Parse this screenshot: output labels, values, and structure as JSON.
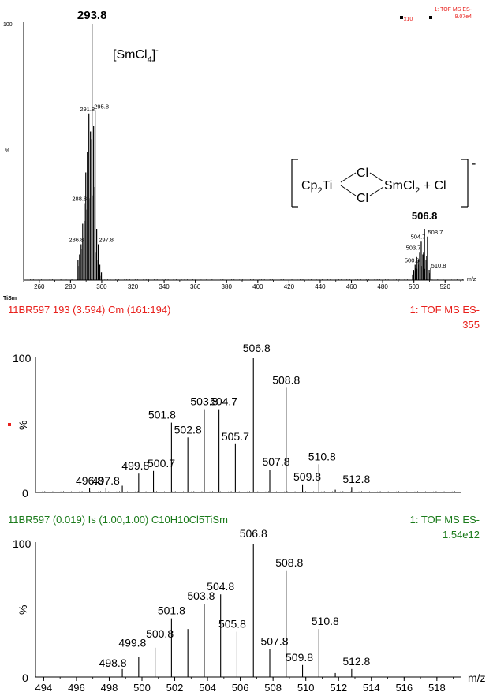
{
  "sample_label": "TiSm",
  "chart_data": [
    {
      "type": "bar",
      "ylabel": "%",
      "xlabel": "m/z",
      "top_left_tag": "100",
      "header_right": "1: TOF MS ES-",
      "header_right2": "9.07e4",
      "header_marker": "x10",
      "xlim": [
        250,
        532
      ],
      "ylim": [
        0,
        100
      ],
      "xticks": [
        "260",
        "280",
        "300",
        "320",
        "340",
        "360",
        "380",
        "400",
        "420",
        "440",
        "460",
        "480",
        "500",
        "520"
      ],
      "annotations": [
        "[SmCl",
        "4",
        "]",
        "-",
        "Cp",
        "2",
        "Ti",
        "Cl",
        "Cl",
        "SmCl",
        "2",
        " + Cl",
        "-"
      ],
      "peaks": [
        {
          "x": 284.8,
          "y": 8
        },
        {
          "x": 285.8,
          "y": 10
        },
        {
          "x": 286.8,
          "y": 14
        },
        {
          "x": 287.8,
          "y": 22
        },
        {
          "x": 288.8,
          "y": 30
        },
        {
          "x": 289.8,
          "y": 42
        },
        {
          "x": 290.8,
          "y": 50
        },
        {
          "x": 291.8,
          "y": 65
        },
        {
          "x": 292.8,
          "y": 58
        },
        {
          "x": 293.8,
          "y": 100
        },
        {
          "x": 294.8,
          "y": 60
        },
        {
          "x": 295.8,
          "y": 66
        },
        {
          "x": 296.8,
          "y": 20
        },
        {
          "x": 297.8,
          "y": 14
        },
        {
          "x": 298.8,
          "y": 6
        },
        {
          "x": 299.8,
          "y": 3
        },
        {
          "x": 499.8,
          "y": 4
        },
        {
          "x": 500.8,
          "y": 6
        },
        {
          "x": 501.8,
          "y": 9
        },
        {
          "x": 502.8,
          "y": 8
        },
        {
          "x": 503.7,
          "y": 11
        },
        {
          "x": 504.7,
          "y": 15
        },
        {
          "x": 505.7,
          "y": 10
        },
        {
          "x": 506.8,
          "y": 20
        },
        {
          "x": 507.8,
          "y": 8
        },
        {
          "x": 508.7,
          "y": 17
        },
        {
          "x": 509.8,
          "y": 4
        },
        {
          "x": 510.8,
          "y": 5
        }
      ],
      "peak_labels": [
        {
          "x": 293.8,
          "y": 100,
          "text": "293.8"
        },
        {
          "x": 291.8,
          "y": 65,
          "text": "291.8"
        },
        {
          "x": 295.8,
          "y": 66,
          "text": "295.8"
        },
        {
          "x": 288.8,
          "y": 30,
          "text": "288.8"
        },
        {
          "x": 286.8,
          "y": 14,
          "text": "286.8"
        },
        {
          "x": 297.8,
          "y": 14,
          "text": "297.8"
        },
        {
          "x": 506.8,
          "y": 20,
          "text": "506.8"
        },
        {
          "x": 504.7,
          "y": 15,
          "text": "504.7"
        },
        {
          "x": 508.7,
          "y": 17,
          "text": "508.7"
        },
        {
          "x": 503.7,
          "y": 11,
          "text": "503.7"
        },
        {
          "x": 500.8,
          "y": 6,
          "text": "500.8"
        },
        {
          "x": 510.8,
          "y": 5,
          "text": "510.8"
        }
      ]
    },
    {
      "type": "bar",
      "title": "11BR597 193 (3.594) Cm (161:194)",
      "header_right": "1: TOF MS ES-",
      "header_right2": "355",
      "ylabel": "%",
      "xlim": [
        493.5,
        519.5
      ],
      "ylim": [
        0,
        100
      ],
      "yticks": [
        "100",
        "0"
      ],
      "peaks": [
        {
          "x": 496.8,
          "y": 3
        },
        {
          "x": 497.8,
          "y": 3
        },
        {
          "x": 498.8,
          "y": 5
        },
        {
          "x": 499.8,
          "y": 14
        },
        {
          "x": 500.7,
          "y": 16
        },
        {
          "x": 501.8,
          "y": 52
        },
        {
          "x": 502.8,
          "y": 41
        },
        {
          "x": 503.8,
          "y": 62
        },
        {
          "x": 504.7,
          "y": 62
        },
        {
          "x": 505.7,
          "y": 36
        },
        {
          "x": 506.8,
          "y": 100
        },
        {
          "x": 507.8,
          "y": 17
        },
        {
          "x": 508.8,
          "y": 78
        },
        {
          "x": 509.8,
          "y": 6
        },
        {
          "x": 510.8,
          "y": 21
        },
        {
          "x": 511.8,
          "y": 2
        },
        {
          "x": 512.8,
          "y": 4
        }
      ],
      "peak_labels": [
        {
          "x": 496.8,
          "y": 3,
          "text": "496.8"
        },
        {
          "x": 497.8,
          "y": 3,
          "text": "497.8"
        },
        {
          "x": 499.8,
          "y": 14,
          "text": "499.8"
        },
        {
          "x": 500.7,
          "y": 16,
          "text": "500.7"
        },
        {
          "x": 501.8,
          "y": 52,
          "text": "501.8"
        },
        {
          "x": 502.8,
          "y": 41,
          "text": "502.8"
        },
        {
          "x": 503.8,
          "y": 62,
          "text": "503.8"
        },
        {
          "x": 504.7,
          "y": 62,
          "text": "504.7"
        },
        {
          "x": 505.7,
          "y": 36,
          "text": "505.7"
        },
        {
          "x": 506.8,
          "y": 100,
          "text": "506.8"
        },
        {
          "x": 507.8,
          "y": 17,
          "text": "507.8"
        },
        {
          "x": 508.8,
          "y": 78,
          "text": "508.8"
        },
        {
          "x": 509.8,
          "y": 6,
          "text": "509.8"
        },
        {
          "x": 510.8,
          "y": 21,
          "text": "510.8"
        },
        {
          "x": 512.8,
          "y": 4,
          "text": "512.8"
        }
      ]
    },
    {
      "type": "bar",
      "title": "11BR597  (0.019) Is (1.00,1.00) C10H10Cl5TiSm",
      "header_right": "1: TOF MS ES-",
      "header_right2": "1.54e12",
      "ylabel": "%",
      "xlabel": "m/z",
      "xlim": [
        493.5,
        519.5
      ],
      "ylim": [
        0,
        100
      ],
      "yticks": [
        "100",
        "0"
      ],
      "xticks": [
        "494",
        "496",
        "498",
        "500",
        "502",
        "504",
        "506",
        "508",
        "510",
        "512",
        "514",
        "516",
        "518"
      ],
      "peaks": [
        {
          "x": 498.8,
          "y": 6
        },
        {
          "x": 499.8,
          "y": 15
        },
        {
          "x": 500.8,
          "y": 22
        },
        {
          "x": 501.8,
          "y": 44
        },
        {
          "x": 502.8,
          "y": 36
        },
        {
          "x": 503.8,
          "y": 55
        },
        {
          "x": 504.8,
          "y": 62
        },
        {
          "x": 505.8,
          "y": 34
        },
        {
          "x": 506.8,
          "y": 100
        },
        {
          "x": 507.8,
          "y": 21
        },
        {
          "x": 508.8,
          "y": 80
        },
        {
          "x": 509.8,
          "y": 9
        },
        {
          "x": 510.8,
          "y": 36
        },
        {
          "x": 511.8,
          "y": 3
        },
        {
          "x": 512.8,
          "y": 6
        }
      ],
      "peak_labels": [
        {
          "x": 498.8,
          "y": 6,
          "text": "498.8"
        },
        {
          "x": 499.8,
          "y": 15,
          "text": "499.8"
        },
        {
          "x": 500.8,
          "y": 22,
          "text": "500.8"
        },
        {
          "x": 501.8,
          "y": 44,
          "text": "501.8"
        },
        {
          "x": 503.8,
          "y": 55,
          "text": "503.8"
        },
        {
          "x": 504.8,
          "y": 62,
          "text": "504.8"
        },
        {
          "x": 505.8,
          "y": 34,
          "text": "505.8"
        },
        {
          "x": 506.8,
          "y": 100,
          "text": "506.8"
        },
        {
          "x": 507.8,
          "y": 21,
          "text": "507.8"
        },
        {
          "x": 508.8,
          "y": 80,
          "text": "508.8"
        },
        {
          "x": 509.8,
          "y": 9,
          "text": "509.8"
        },
        {
          "x": 510.8,
          "y": 36,
          "text": "510.8"
        },
        {
          "x": 512.8,
          "y": 6,
          "text": "512.8"
        }
      ]
    }
  ]
}
